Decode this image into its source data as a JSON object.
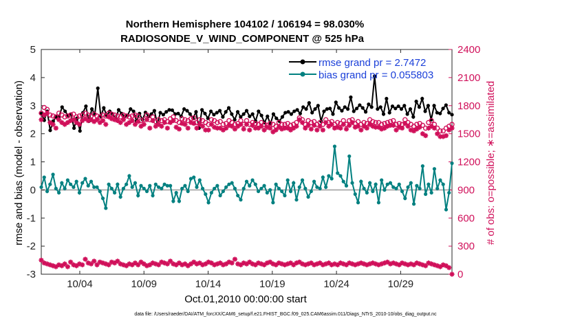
{
  "chart_data": {
    "type": "line",
    "title": "Northern Hemisphere 104102 / 106194 = 98.030%",
    "subtitle": "RADIOSONDE_V_WIND_COMPONENT @ 525 hPa",
    "xlabel": "Oct.01,2010 00:00:00 start",
    "ylabel": "rmse and bias (model - observation)",
    "ylabel_right": "# of obs: o=possible; ∗=assimilated",
    "xlim": [
      1,
      33
    ],
    "ylim": [
      -3,
      5
    ],
    "ylim_right": [
      0,
      2400
    ],
    "x_ticks": [
      4,
      9,
      14,
      19,
      24,
      29
    ],
    "x_tick_labels": [
      "10/04",
      "10/09",
      "10/14",
      "10/19",
      "10/24",
      "10/29"
    ],
    "y_ticks": [
      -3,
      -2,
      -1,
      0,
      1,
      2,
      3,
      4,
      5
    ],
    "y_tick_labels": [
      "-3",
      "-2",
      "-1",
      "0",
      "1",
      "2",
      "3",
      "4",
      "5"
    ],
    "y_right_ticks": [
      0,
      300,
      600,
      900,
      1200,
      1500,
      1800,
      2100,
      2400
    ],
    "y_right_tick_labels": [
      "0",
      "300",
      "600",
      "900",
      "1200",
      "1500",
      "1800",
      "2100",
      "2400"
    ],
    "legend": [
      {
        "name": "rmse grand pr = 2.7472",
        "color": "#000000"
      },
      {
        "name": "bias grand pr = 0.055803",
        "color": "#008080"
      }
    ],
    "legend_position": "top-right",
    "zero_line_color": "#b0b0b0",
    "series": [
      {
        "name": "rmse",
        "color": "#000000",
        "axis": "left",
        "values": [
          2.72,
          2.48,
          2.8,
          2.12,
          2.45,
          2.6,
          2.62,
          2.95,
          2.8,
          2.65,
          2.7,
          2.2,
          2.55,
          2.1,
          2.75,
          2.98,
          2.45,
          2.88,
          2.7,
          3.62,
          2.62,
          2.92,
          2.65,
          2.8,
          2.7,
          2.55,
          2.85,
          2.72,
          2.62,
          2.65,
          2.88,
          2.8,
          2.45,
          2.72,
          2.5,
          2.76,
          2.62,
          2.7,
          2.82,
          2.35,
          2.75,
          2.68,
          2.78,
          2.85,
          2.84,
          2.7,
          2.72,
          2.62,
          2.88,
          2.82,
          2.7,
          2.55,
          2.78,
          2.2,
          2.85,
          2.72,
          2.55,
          2.8,
          2.68,
          2.75,
          2.82,
          2.6,
          2.78,
          2.92,
          2.7,
          2.5,
          2.78,
          2.6,
          2.7,
          2.82,
          2.62,
          2.7,
          2.45,
          2.8,
          2.65,
          2.4,
          2.62,
          2.35,
          2.7,
          2.55,
          2.45,
          2.6,
          2.75,
          2.78,
          2.7,
          2.8,
          2.85,
          2.72,
          2.95,
          2.88,
          3.1,
          2.75,
          2.88,
          3.0,
          2.45,
          2.8,
          2.88,
          2.9,
          2.7,
          3.12,
          2.92,
          2.82,
          2.95,
          2.88,
          3.3,
          2.8,
          2.9,
          3.02,
          2.92,
          2.78,
          3.05,
          2.95,
          4.05,
          2.88,
          2.95,
          2.7,
          3.25,
          2.75,
          2.98,
          2.9,
          2.98,
          2.88,
          3.0,
          2.7,
          2.88,
          2.6,
          3.15,
          2.95,
          3.25,
          2.8,
          3.0,
          2.5,
          3.0,
          2.75,
          2.72,
          2.9,
          3.02,
          2.75,
          2.68
        ]
      },
      {
        "name": "bias",
        "color": "#008080",
        "axis": "left",
        "values": [
          0.1,
          0.45,
          -0.05,
          0.2,
          0.55,
          0.05,
          -0.1,
          0.25,
          0.05,
          0.35,
          0.2,
          0.1,
          0.3,
          -0.1,
          0.25,
          0.4,
          0.15,
          0.3,
          0.1,
          0.1,
          -0.05,
          -0.3,
          -0.65,
          0.2,
          0.05,
          -0.1,
          0.2,
          -0.25,
          0.05,
          0.2,
          0.5,
          0.1,
          0.25,
          -0.2,
          0.15,
          0.05,
          -0.05,
          0.15,
          -0.2,
          0.2,
          0.1,
          0.05,
          0.2,
          0.15,
          0.15,
          -0.4,
          -0.1,
          -0.4,
          0.05,
          0.15,
          -0.05,
          0.4,
          0.45,
          0.1,
          0.35,
          0.05,
          -0.15,
          -0.45,
          -0.1,
          0.05,
          0.15,
          -0.2,
          -0.05,
          0.1,
          0.2,
          0.25,
          0.05,
          -0.2,
          -0.35,
          0.05,
          0.3,
          0.15,
          0.35,
          0.2,
          -0.05,
          0.05,
          0.15,
          -0.1,
          0.0,
          -0.45,
          0.2,
          0.05,
          -0.05,
          -0.2,
          0.35,
          -0.05,
          0.25,
          -0.35,
          0.1,
          0.35,
          0.05,
          -0.25,
          -0.05,
          0.3,
          0.1,
          0.05,
          0.45,
          0.1,
          0.5,
          0.4,
          1.55,
          0.6,
          0.5,
          0.3,
          0.15,
          1.2,
          0.25,
          -0.15,
          -0.45,
          0.3,
          0.05,
          -0.1,
          0.25,
          -0.05,
          0.2,
          -0.45,
          0.35,
          0.0,
          0.2,
          0.25,
          0.1,
          0.05,
          0.2,
          -0.05,
          -0.3,
          0.1,
          0.25,
          -0.5,
          0.15,
          0.05,
          0.85,
          -0.15,
          0.2,
          -0.1,
          0.75,
          0.05,
          0.35,
          0.2,
          -0.7,
          -0.1,
          0.95
        ]
      },
      {
        "name": "possible",
        "color": "#d0105a",
        "axis": "right",
        "marker": "circle",
        "values": [
          1720,
          1780,
          1760,
          1700,
          1690,
          1680,
          1720,
          1700,
          1680,
          1690,
          1700,
          1710,
          1680,
          1690,
          1700,
          1720,
          1700,
          1690,
          1710,
          1690,
          1680,
          1700,
          1690,
          1720,
          1710,
          1700,
          1690,
          1680,
          1700,
          1690,
          1680,
          1690,
          1700,
          1690,
          1640,
          1650,
          1700,
          1650,
          1680,
          1630,
          1650,
          1640,
          1650,
          1630,
          1660,
          1680,
          1640,
          1620,
          1660,
          1650,
          1640,
          1660,
          1670,
          1620,
          1650,
          1640,
          1620,
          1600,
          1650,
          1640,
          1620,
          1630,
          1600,
          1610,
          1640,
          1620,
          1600,
          1610,
          1640,
          1600,
          1640,
          1600,
          1620,
          1610,
          1600,
          1620,
          1600,
          1590,
          1610,
          1600,
          1580,
          1620,
          1600,
          1600,
          1610,
          1590,
          1600,
          1620,
          1670,
          1650,
          1600,
          1640,
          1620,
          1630,
          1600,
          1620,
          1600,
          1650,
          1620,
          1630,
          1600,
          1620,
          1610,
          1640,
          1600,
          1640,
          1650,
          1610,
          1630,
          1600,
          1620,
          1610,
          1650,
          1630,
          1620,
          1620,
          1600,
          1610,
          1620,
          1630,
          1640,
          1600,
          1610,
          1600,
          1650,
          1620,
          1600,
          1580,
          1600,
          1610,
          1590,
          1560,
          1620,
          1640,
          1600,
          1560,
          1530,
          1530,
          1560,
          1580,
          1600
        ]
      },
      {
        "name": "assimilated",
        "color": "#d0105a",
        "axis": "right",
        "marker": "star",
        "values": [
          1650,
          1700,
          1720,
          1620,
          1600,
          1560,
          1650,
          1620,
          1600,
          1620,
          1640,
          1650,
          1620,
          1600,
          1640,
          1660,
          1640,
          1650,
          1630,
          1650,
          1620,
          1640,
          1600,
          1680,
          1660,
          1650,
          1640,
          1620,
          1650,
          1600,
          1620,
          1640,
          1600,
          1630,
          1580,
          1600,
          1650,
          1560,
          1640,
          1580,
          1600,
          1580,
          1620,
          1560,
          1620,
          1640,
          1570,
          1550,
          1610,
          1600,
          1560,
          1620,
          1610,
          1560,
          1600,
          1580,
          1540,
          1540,
          1600,
          1570,
          1560,
          1560,
          1540,
          1560,
          1590,
          1580,
          1550,
          1580,
          1600,
          1550,
          1600,
          1540,
          1590,
          1560,
          1560,
          1580,
          1540,
          1570,
          1560,
          1520,
          1540,
          1570,
          1550,
          1560,
          1560,
          1540,
          1560,
          1580,
          1650,
          1620,
          1560,
          1590,
          1550,
          1590,
          1540,
          1580,
          1540,
          1620,
          1580,
          1600,
          1560,
          1570,
          1560,
          1600,
          1550,
          1590,
          1620,
          1570,
          1580,
          1540,
          1580,
          1560,
          1600,
          1580,
          1570,
          1570,
          1550,
          1560,
          1580,
          1590,
          1590,
          1540,
          1570,
          1560,
          1610,
          1580,
          1540,
          1530,
          1550,
          1570,
          1500,
          1480,
          1560,
          1580,
          1560,
          1500,
          1470,
          1470,
          1480,
          1540,
          1560
        ]
      },
      {
        "name": "possible (lower band)",
        "color": "#d0105a",
        "axis": "right",
        "marker": "star",
        "values": [
          150,
          120,
          110,
          100,
          90,
          80,
          100,
          90,
          110,
          80,
          130,
          100,
          90,
          110,
          100,
          160,
          120,
          110,
          140,
          100,
          130,
          120,
          110,
          100,
          130,
          120,
          140,
          110,
          100,
          90,
          110,
          100,
          120,
          100,
          130,
          110,
          90,
          100,
          120,
          110,
          100,
          130,
          120,
          110,
          140,
          110,
          100,
          120,
          100,
          110,
          90,
          110,
          130,
          110,
          120,
          100,
          110,
          130,
          120,
          100,
          110,
          120,
          100,
          110,
          130,
          120,
          160,
          110,
          100,
          120,
          110,
          130,
          110,
          100,
          120,
          110,
          100,
          120,
          130,
          110,
          100,
          120,
          110,
          100,
          110,
          120,
          100,
          120,
          130,
          110,
          100,
          110,
          120,
          100,
          110,
          120,
          100,
          110,
          120,
          100,
          110,
          100,
          120,
          110,
          100,
          120,
          110,
          100,
          110,
          120,
          110,
          100,
          110,
          120,
          110,
          100,
          110,
          120,
          130,
          110,
          120,
          110,
          100,
          120,
          110,
          100,
          110,
          100,
          120,
          110,
          100,
          90,
          120,
          110,
          100,
          90,
          80,
          100,
          90,
          70,
          0
        ]
      }
    ]
  },
  "footer": {
    "data_file": "data file: /Users/raeder/DAI/ATM_forcXX/CAM6_setup/f.e21.FHIST_BGC.f09_025.CAM6assim.011/Diags_NTrS_2010-10/obs_diag_output.nc"
  }
}
